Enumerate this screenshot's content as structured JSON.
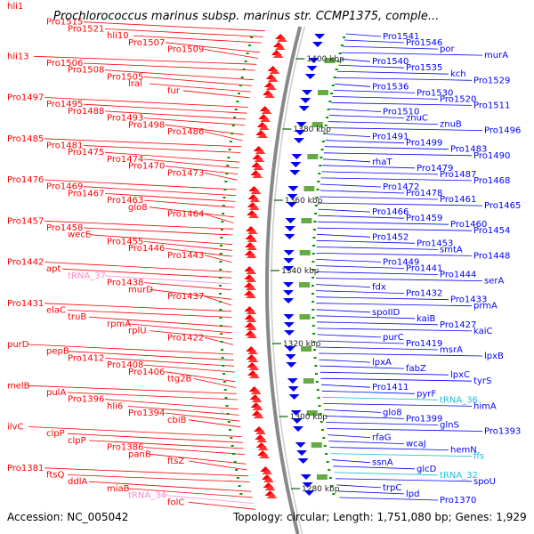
{
  "title": "Prochlorococcus marinus subsp. marinus str. CCMP1375, comple...",
  "footer": {
    "accession": "Accession: NC_005042",
    "topology": "Topology: circular; Length: 1,751,080 bp; Genes: 1,929"
  },
  "colors": {
    "left_strand": "#ff0000",
    "right_strand": "#0000ff",
    "rna": "#ff88cc",
    "rna_right": "#22bbdd",
    "backbone": "#888888",
    "tick": "#008800"
  },
  "scale_labels": [
    "1400 kbp",
    "1380 kbp",
    "1360 kbp",
    "1340 kbp",
    "1320 kbp",
    "1300 kbp",
    "1280 kbp"
  ],
  "left_labels": [
    "hli1",
    "Pro1515",
    "Pro1521",
    "hli10",
    "Pro1507",
    "Pro1509",
    "hli13",
    "Pro1506",
    "Pro1508",
    "Pro1505",
    "lral",
    "fur",
    "Pro1497",
    "Pro1495",
    "Pro1488",
    "Pro1493",
    "Pro1498",
    "Pro1486",
    "Pro1485",
    "Pro1481",
    "Pro1475",
    "Pro1474",
    "Pro1470",
    "Pro1473",
    "Pro1476",
    "Pro1469",
    "Pro1467",
    "Pro1463",
    "glo8",
    "Pro1464",
    "Pro1457",
    "Pro1458",
    "wecE",
    "Pro1455",
    "Pro1446",
    "Pro1443",
    "Pro1442",
    "apt",
    "tRNA_37",
    "Pro1438",
    "murD",
    "Pro1437",
    "Pro1431",
    "elaC",
    "truB",
    "rpmA",
    "rplU",
    "Pro1422",
    "purD",
    "pepB",
    "Pro1412",
    "Pro1408",
    "Pro1406",
    "ttg2B",
    "melB",
    "pulA",
    "Pro1396",
    "hli6",
    "Pro1394",
    "cbiB",
    "ilvC",
    "clpP",
    "clpP",
    "Pro1386",
    "panB",
    "ftsZ",
    "Pro1381",
    "ftsQ",
    "ddlA",
    "miaB",
    "tRNA_34",
    "folC"
  ],
  "right_labels": [
    "Pro1541",
    "Pro1546",
    "por",
    "murA",
    "Pro1540",
    "Pro1535",
    "kch",
    "Pro1529",
    "Pro1536",
    "Pro1530",
    "Pro1520",
    "Pro1511",
    "Pro1510",
    "znuC",
    "znuB",
    "Pro1496",
    "Pro1491",
    "Pro1499",
    "Pro1483",
    "Pro1490",
    "rhaT",
    "Pro1479",
    "Pro1487",
    "Pro1468",
    "Pro1472",
    "Pro1478",
    "Pro1461",
    "Pro1465",
    "Pro1466",
    "Pro1459",
    "Pro1460",
    "Pro1454",
    "Pro1452",
    "Pro1453",
    "smtA",
    "Pro1448",
    "Pro1449",
    "Pro1441",
    "Pro1444",
    "serA",
    "fdx",
    "Pro1432",
    "Pro1433",
    "prmA",
    "spoIID",
    "kaiB",
    "Pro1427",
    "kaiC",
    "purC",
    "Pro1419",
    "msrA",
    "lpxB",
    "lpxA",
    "fabZ",
    "lpxC",
    "tyrS",
    "Pro1411",
    "pyrF",
    "tRNA_36",
    "himA",
    "glo8",
    "Pro1399",
    "glnS",
    "Pro1393",
    "rfaG",
    "wcaJ",
    "hemN",
    "ffs",
    "ssnA",
    "glcD",
    "tRNA_32",
    "spoU",
    "trpC",
    "lpd",
    "Pro1370"
  ]
}
